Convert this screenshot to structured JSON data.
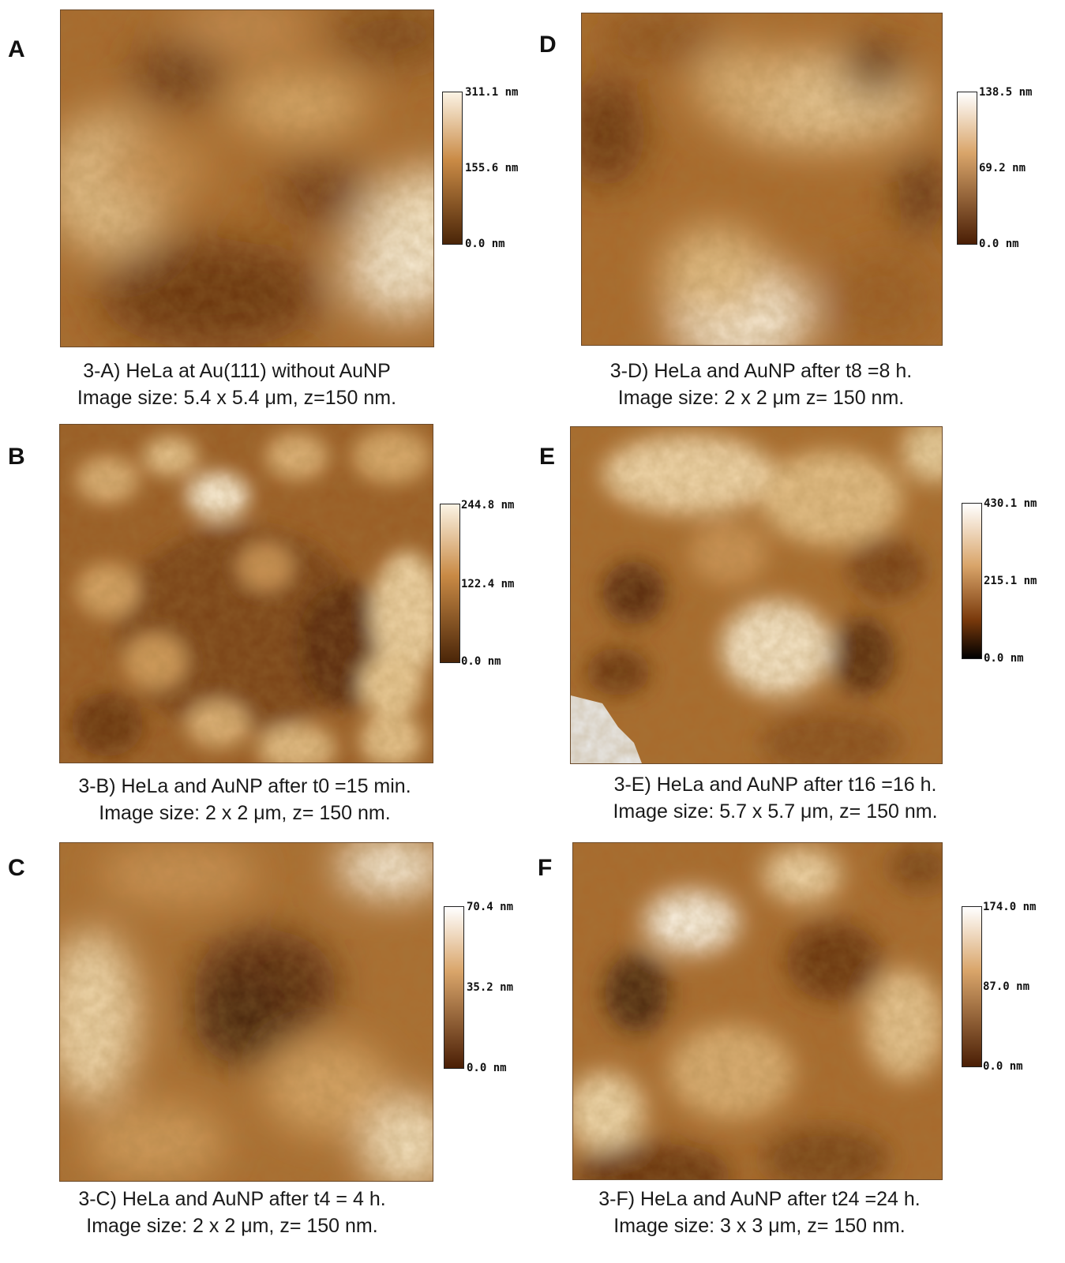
{
  "panels": [
    {
      "letter": "A",
      "scale": {
        "max": "311.1 nm",
        "mid": "155.6 nm",
        "min": "0.0 nm"
      },
      "caption_line1": "3-A) HeLa at Au(111) without AuNP",
      "caption_line2": "Image size: 5.4 x 5.4 μm, z=150 nm."
    },
    {
      "letter": "D",
      "scale": {
        "max": "138.5 nm",
        "mid": "69.2 nm",
        "min": "0.0 nm"
      },
      "caption_line1": "3-D) HeLa and AuNP after t8 =8 h.",
      "caption_line2": "Image size: 2 x 2 μm z= 150 nm."
    },
    {
      "letter": "B",
      "scale": {
        "max": "244.8 nm",
        "mid": "122.4 nm",
        "min": "0.0 nm"
      },
      "caption_line1": "3-B) HeLa and AuNP after t0 =15 min.",
      "caption_line2": "Image size: 2 x 2 μm, z= 150 nm."
    },
    {
      "letter": "E",
      "scale": {
        "max": "430.1 nm",
        "mid": "215.1 nm",
        "min": "0.0 nm"
      },
      "caption_line1": "3-E) HeLa and AuNP after t16 =16 h.",
      "caption_line2": "Image size: 5.7 x 5.7 μm, z= 150 nm."
    },
    {
      "letter": "C",
      "scale": {
        "max": "70.4 nm",
        "mid": "35.2 nm",
        "min": "0.0 nm"
      },
      "caption_line1": "3-C) HeLa and AuNP after t4 = 4 h.",
      "caption_line2": "Image size: 2 x 2 μm, z= 150 nm."
    },
    {
      "letter": "F",
      "scale": {
        "max": "174.0 nm",
        "mid": "87.0 nm",
        "min": "0.0 nm"
      },
      "caption_line1": "3-F) HeLa and AuNP after t24 =24 h.",
      "caption_line2": "Image size: 3 x 3 μm, z= 150 nm."
    }
  ],
  "colors": {
    "dark": "#4a2508",
    "mid": "#a86a2c",
    "light": "#e9cf9f",
    "highlight": "#fbf3e4"
  }
}
